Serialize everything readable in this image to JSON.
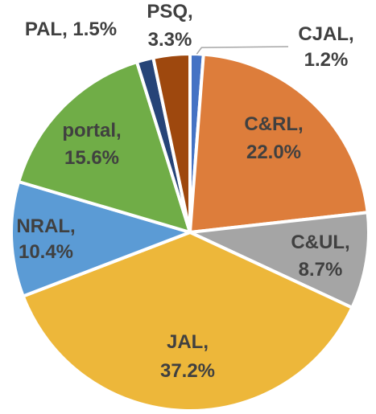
{
  "chart_data": {
    "type": "pie",
    "title": "",
    "slices": [
      {
        "name": "CJAL",
        "value": 1.2,
        "line1": "CJAL,",
        "line2": "1.2%",
        "color": "#4472c4"
      },
      {
        "name": "C&RL",
        "value": 22.0,
        "line1": "C&RL,",
        "line2": "22.0%",
        "color": "#dd7d3b"
      },
      {
        "name": "C&UL",
        "value": 8.7,
        "line1": "C&UL,",
        "line2": "8.7%",
        "color": "#a5a5a5"
      },
      {
        "name": "JAL",
        "value": 37.2,
        "line1": "JAL,",
        "line2": "37.2%",
        "color": "#edb73a"
      },
      {
        "name": "NRAL",
        "value": 10.4,
        "line1": "NRAL,",
        "line2": "10.4%",
        "color": "#5b9bd5"
      },
      {
        "name": "portal",
        "value": 15.6,
        "line1": "portal,",
        "line2": "15.6%",
        "color": "#70ad47"
      },
      {
        "name": "PAL",
        "value": 1.5,
        "line1": "PAL, 1.5%",
        "line2": "",
        "color": "#264478"
      },
      {
        "name": "PSQ",
        "value": 3.3,
        "line1": "PSQ,",
        "line2": "3.3%",
        "color": "#9e480e"
      }
    ],
    "legend": "none",
    "labels": "data-labels with category and percentage"
  }
}
